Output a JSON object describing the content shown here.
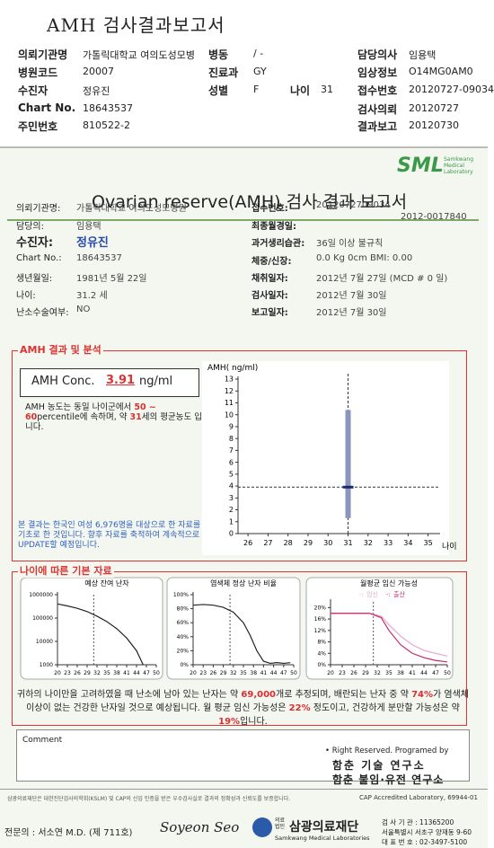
{
  "header": {
    "title": "AMH 검사결과보고서",
    "fields": [
      {
        "label": "의뢰기관명",
        "value": "가톨릭대학교 여의도성모병"
      },
      {
        "label": "병동",
        "value": "/ -"
      },
      {
        "label": "담당의사",
        "value": "임용택"
      },
      {
        "label": "병원코드",
        "value": "20007"
      },
      {
        "label": "진료과",
        "value": "GY"
      },
      {
        "label": "임상정보",
        "value": "O14MG0AM0"
      },
      {
        "label": "수진자",
        "value": "정유진"
      },
      {
        "label": "성별",
        "value": "F"
      },
      {
        "label": "나이",
        "value": "31"
      },
      {
        "label": "접수번호",
        "value": "20120727-09034"
      },
      {
        "label": "Chart No.",
        "value": "18643537"
      },
      {
        "label": "검사의뢰",
        "value": "20120727"
      },
      {
        "label": "주민번호",
        "value": "810522-2"
      },
      {
        "label": "결과보고",
        "value": "20120730"
      }
    ]
  },
  "report": {
    "logo": "SML",
    "logo_sub": "Samkwang Medical Laboratory",
    "title": "Ovarian reserve(AMH) 검사 결과 보고서",
    "number": "2012-0017840",
    "left": [
      {
        "label": "의뢰기관명:",
        "value": "가톨릭대학교 여의도성모병원"
      },
      {
        "label": "담당의:",
        "value": "임용택"
      },
      {
        "label": "수진자:",
        "value": "정유진"
      },
      {
        "label": "Chart No.:",
        "value": "18643537"
      },
      {
        "label": "생년월일:",
        "value": "1981년 5월 22일"
      },
      {
        "label": "나이:",
        "value": "31.2 세"
      },
      {
        "label": "난소수술여부:",
        "value": "NO"
      }
    ],
    "right": [
      {
        "label": "접수번호:",
        "value": "2012072709034"
      },
      {
        "label": "최종월경일:"
      },
      {
        "label": "과거생리습관:",
        "value": "36일 이상 불규칙"
      },
      {
        "label": "체중/신장:",
        "value": "0.0 Kg      0cm    BMI:   0.00"
      },
      {
        "label": "채취일자:",
        "value": "2012년 7월 27일   (MCD #  0 일)"
      },
      {
        "label": "검사일자:",
        "value": "2012년 7월 30일"
      },
      {
        "label": "보고일자:",
        "value": "2012년 7월 30일"
      }
    ]
  },
  "amh": {
    "heading": "AMH 결과 및 분석",
    "conc_label": "AMH Conc.",
    "unit": "ng/ml",
    "description": [
      "AMH 농도는 동일 나이군에서 ",
      "50 ~ 60",
      "percentile에 속하며, 약 ",
      "31",
      "세의 평균농도 입니다."
    ],
    "note": "본 결과는 한국인 여성 6,976명을 대상으로 한 자료를 기초로 한 것입니다. 향후 자료를 축적하여 계속적으로 UPDATE할 예정입니다."
  },
  "basics": {
    "heading": "나이에 따른 기본 자료",
    "summary": [
      "귀하의 나이만을 고려하였을 때 난소에 남아 있는 난자는 약 ",
      "69,000",
      "개로 추정되며, 배란되는 난자 중 약 ",
      "74%",
      "가 염색체이상이 없는 건강한 난자일 것으로 예상됩니다. 월 평균 임신 가능성은 ",
      "22%",
      " 정도이고, 건강하게 분만할 가능성은 약 ",
      "19%",
      "입니다."
    ]
  },
  "comment": {
    "label": "Comment",
    "credit": "• Right Reserved. Programed by",
    "lab1": "함춘 기술 연구소",
    "lab2": "함춘 불임·유전 연구소"
  },
  "footer": {
    "notice": "삼광의료재단은 대한진단검사의학회(KSLM) 및 CAP의 신임 인증을 받은 우수검사실로 결과의 정확성과 신뢰도를 보증합니다.",
    "cap": "CAP Accredited Laboratory, 69944-01",
    "doctor": "전문의 : 서소연 M.D. (제 711호)",
    "signature": "Soyeon Seo",
    "org_prefix": "의료법인",
    "org": "삼광의료재단",
    "org_en": "Samkwang Medical Laboratories",
    "code": "검 사 기 관 : 11365200",
    "address": "서울특별시 서초구 양재동 9-60",
    "phone": "대 표 번 호 : 02-3497-5100"
  },
  "chart_data": [
    {
      "type": "box",
      "y_label": "AMH( ng/ml)",
      "x_label": "나이",
      "xlim": [
        25.5,
        35.6
      ],
      "ylim": [
        0,
        13
      ],
      "xticks": [
        26,
        27,
        28,
        29,
        30,
        31,
        32,
        33,
        34,
        35
      ],
      "yticks": [
        0,
        1,
        2,
        3,
        4,
        5,
        6,
        7,
        8,
        9,
        10,
        11,
        12,
        13
      ],
      "x": 31,
      "range": [
        1.3,
        10.4
      ],
      "value": 3.91,
      "color": "#8a96bd"
    },
    {
      "type": "line",
      "title": "예상 잔여 난자",
      "y_scale": "log",
      "xlim": [
        20,
        50
      ],
      "ylim": [
        1000,
        1000000
      ],
      "xticks": [
        20,
        23,
        26,
        29,
        32,
        35,
        38,
        41,
        44,
        47,
        50
      ],
      "yticks": [
        1000000,
        100000,
        10000,
        1000
      ],
      "x": [
        20,
        23,
        26,
        29,
        32,
        35,
        38,
        41,
        44,
        46
      ],
      "values": [
        400000,
        330000,
        260000,
        190000,
        120000,
        70000,
        35000,
        14000,
        4000,
        1000
      ],
      "color": "#222222"
    },
    {
      "type": "line",
      "title": "염색체 정상 난자 비율",
      "xlim": [
        20,
        50
      ],
      "ylim": [
        0,
        100
      ],
      "xticks": [
        20,
        23,
        26,
        29,
        32,
        35,
        38,
        41,
        44,
        47,
        50
      ],
      "yticks": [
        {
          "value": 100,
          "label": "100%"
        },
        {
          "value": 80,
          "label": "80%"
        },
        {
          "value": 60,
          "label": "60%"
        },
        {
          "value": 40,
          "label": "40%"
        },
        {
          "value": 20,
          "label": "20%"
        },
        {
          "value": 0,
          "label": "0%"
        }
      ],
      "x": [
        20,
        23,
        26,
        29,
        32,
        35,
        37,
        39,
        41,
        43,
        45,
        47,
        49
      ],
      "values": [
        85,
        86,
        85,
        82,
        75,
        60,
        42,
        20,
        5,
        2,
        3,
        2,
        3
      ],
      "color": "#222222"
    },
    {
      "type": "line",
      "title": "월평균 임신 가능성",
      "xlim": [
        20,
        50
      ],
      "ylim": [
        0,
        22
      ],
      "xticks": [
        20,
        23,
        26,
        29,
        32,
        35,
        38,
        41,
        44,
        47,
        50
      ],
      "yticks": [
        {
          "value": 20,
          "label": "20%"
        },
        {
          "value": 16,
          "label": "16%"
        },
        {
          "value": 12,
          "label": "12%"
        },
        {
          "value": 8,
          "label": "8%"
        },
        {
          "value": 4,
          "label": "4%"
        },
        {
          "value": 0,
          "label": "0%"
        }
      ],
      "x": [
        20,
        25,
        30,
        33,
        35,
        38,
        41,
        44,
        47,
        50
      ],
      "series": [
        {
          "name": "임신",
          "color": "#e4a6cc",
          "values": [
            18,
            18,
            18,
            17,
            14,
            10,
            7,
            5,
            4,
            3
          ]
        },
        {
          "name": "출산",
          "color": "#c8286e",
          "values": [
            18,
            18,
            18,
            16.5,
            12,
            7,
            4,
            2.5,
            1.5,
            1
          ]
        }
      ]
    }
  ]
}
